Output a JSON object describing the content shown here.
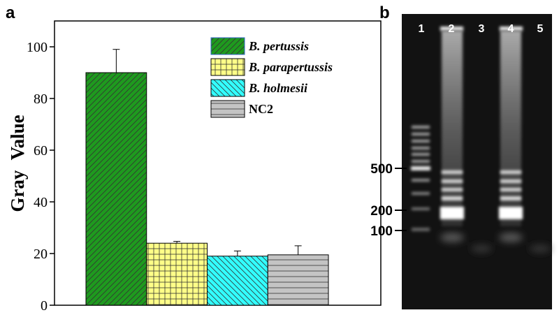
{
  "chart_data": {
    "type": "bar",
    "panel_label": "a",
    "ylabel": "Gray Value",
    "ylim": [
      0,
      110
    ],
    "yticks": [
      0,
      20,
      40,
      60,
      80,
      100
    ],
    "legend": "upper right",
    "series": [
      {
        "name": "B. pertussis",
        "color": "#1e9a1e",
        "pattern": "diagonal-up",
        "italic": true,
        "values": [
          90
        ],
        "errors": [
          9
        ]
      },
      {
        "name": "B. parapertussis",
        "color": "#ffff88",
        "pattern": "grid",
        "italic": true,
        "values": [
          24
        ],
        "errors": [
          0.7
        ]
      },
      {
        "name": "B. holmesii",
        "color": "#33ffff",
        "pattern": "diagonal-down",
        "italic": true,
        "values": [
          19
        ],
        "errors": [
          2
        ]
      },
      {
        "name": "NC2",
        "color": "#c4c4c4",
        "pattern": "horizontal",
        "italic": false,
        "values": [
          19.5
        ],
        "errors": [
          3.5
        ]
      }
    ]
  },
  "gel": {
    "panel_label": "b",
    "lanes": [
      1,
      2,
      3,
      4,
      5
    ],
    "size_markers": [
      500,
      200,
      100
    ]
  }
}
